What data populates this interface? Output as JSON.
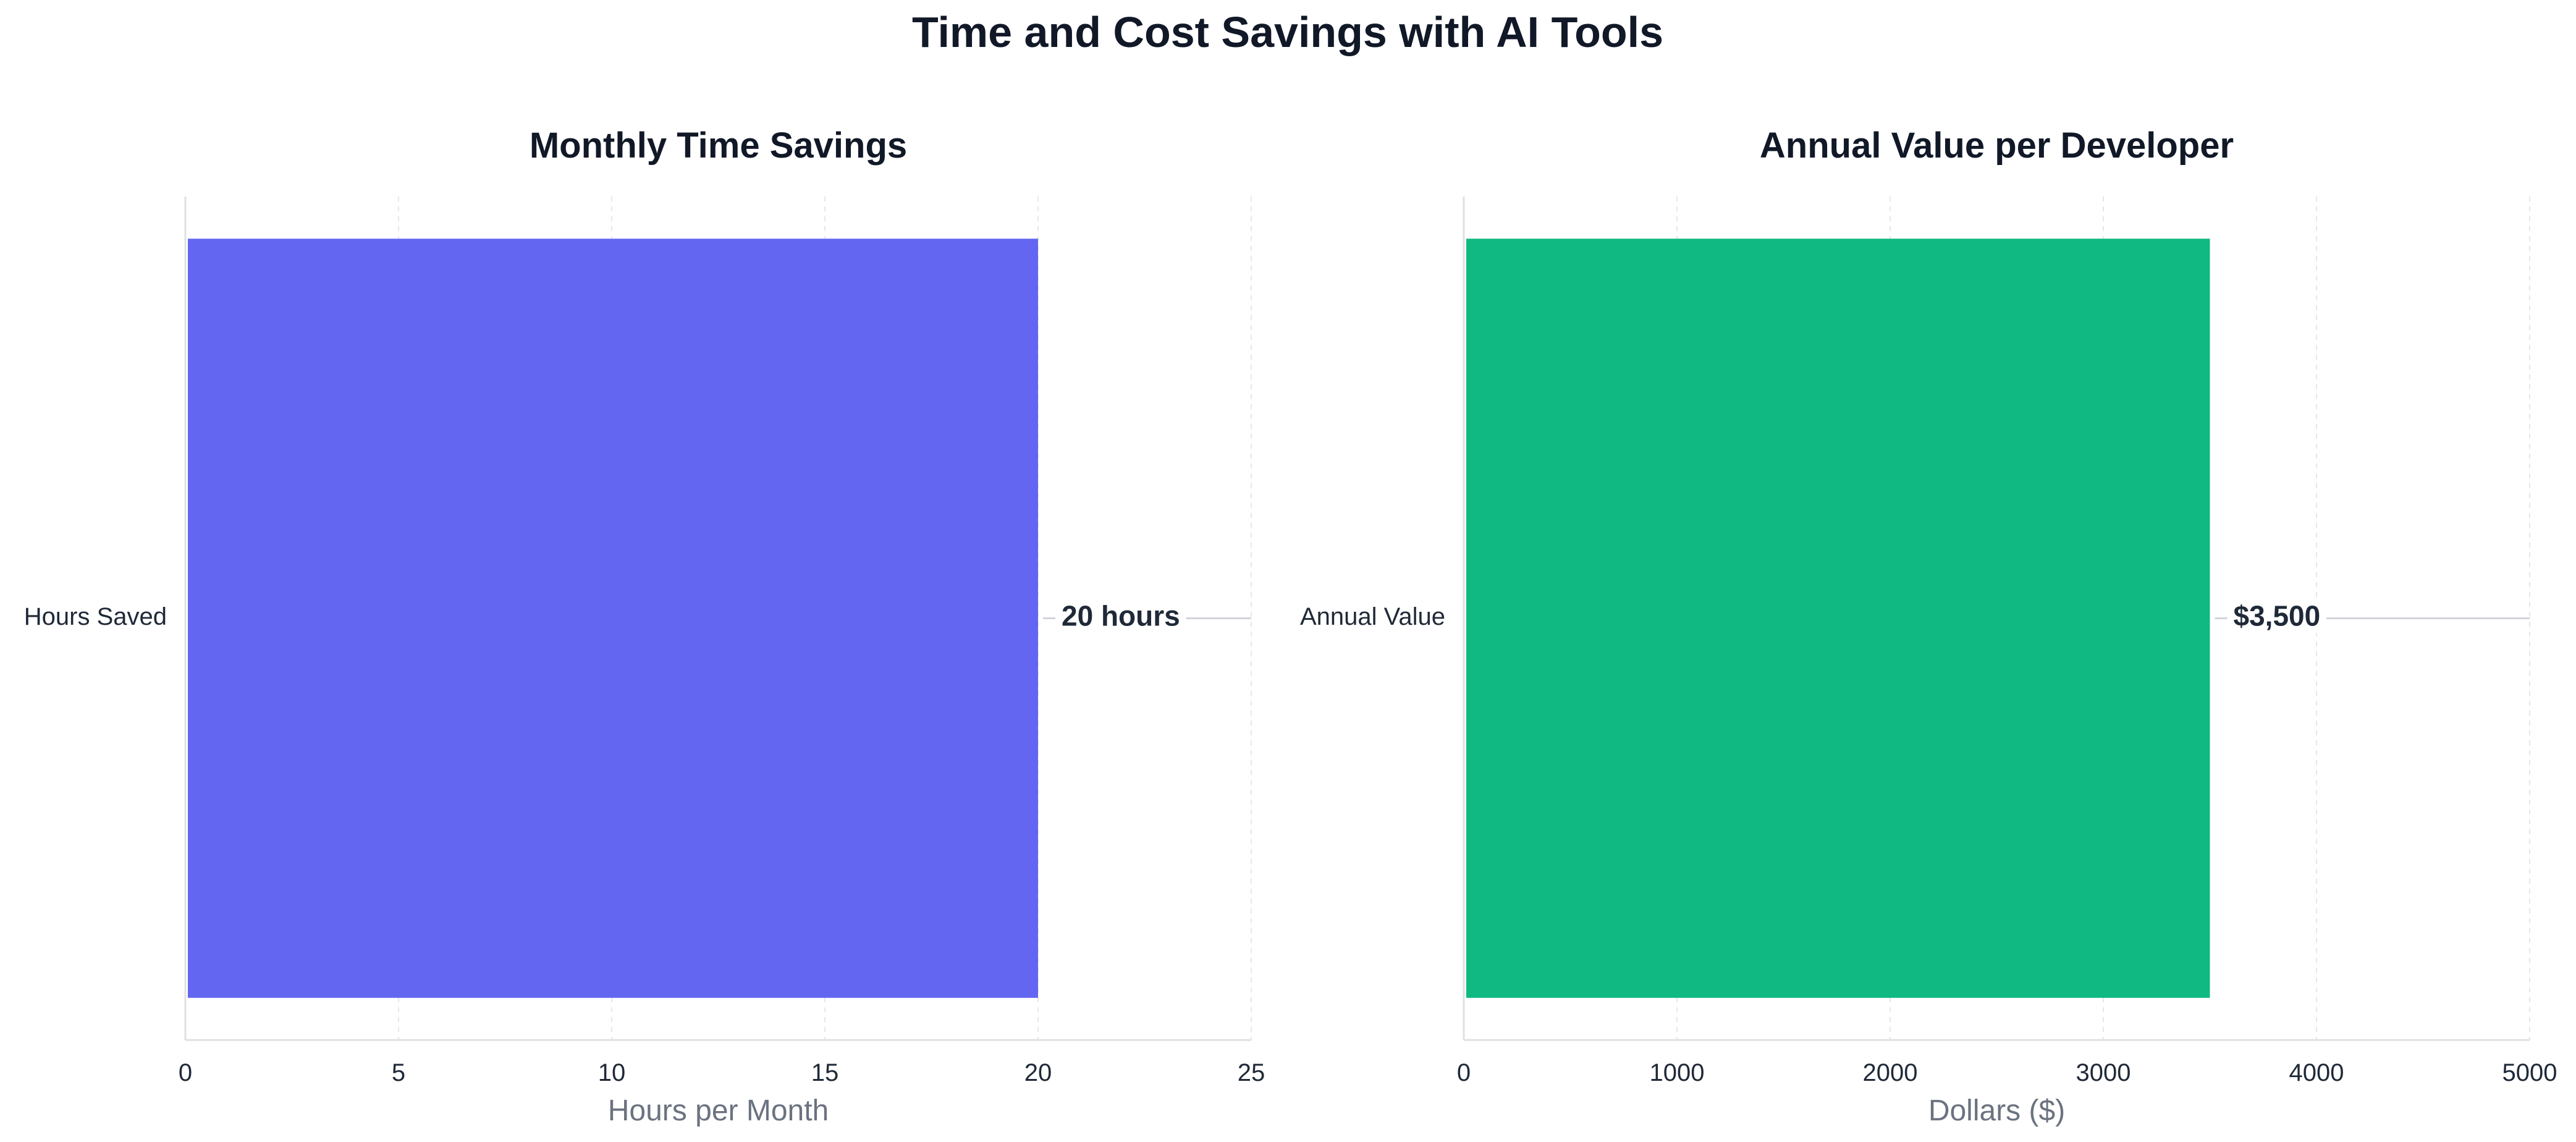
{
  "figure": {
    "title": "Time and Cost Savings with AI Tools"
  },
  "chart_data": [
    {
      "type": "bar",
      "orientation": "horizontal",
      "title": "Monthly Time Savings",
      "categories": [
        "Hours Saved"
      ],
      "values": [
        20
      ],
      "value_labels": [
        "20 hours"
      ],
      "xlabel": "Hours per Month",
      "ylabel": "",
      "xlim": [
        0,
        25
      ],
      "xticks": [
        0,
        5,
        10,
        15,
        20,
        25
      ],
      "bar_color": "#6366f1",
      "grid": "x-dashed",
      "legend": "none"
    },
    {
      "type": "bar",
      "orientation": "horizontal",
      "title": "Annual Value per Developer",
      "categories": [
        "Annual Value"
      ],
      "values": [
        3500
      ],
      "value_labels": [
        "$3,500"
      ],
      "xlabel": "Dollars ($)",
      "ylabel": "",
      "xlim": [
        0,
        5000
      ],
      "xticks": [
        0,
        1000,
        2000,
        3000,
        4000,
        5000
      ],
      "bar_color": "#10b981",
      "grid": "x-dashed",
      "legend": "none"
    }
  ]
}
